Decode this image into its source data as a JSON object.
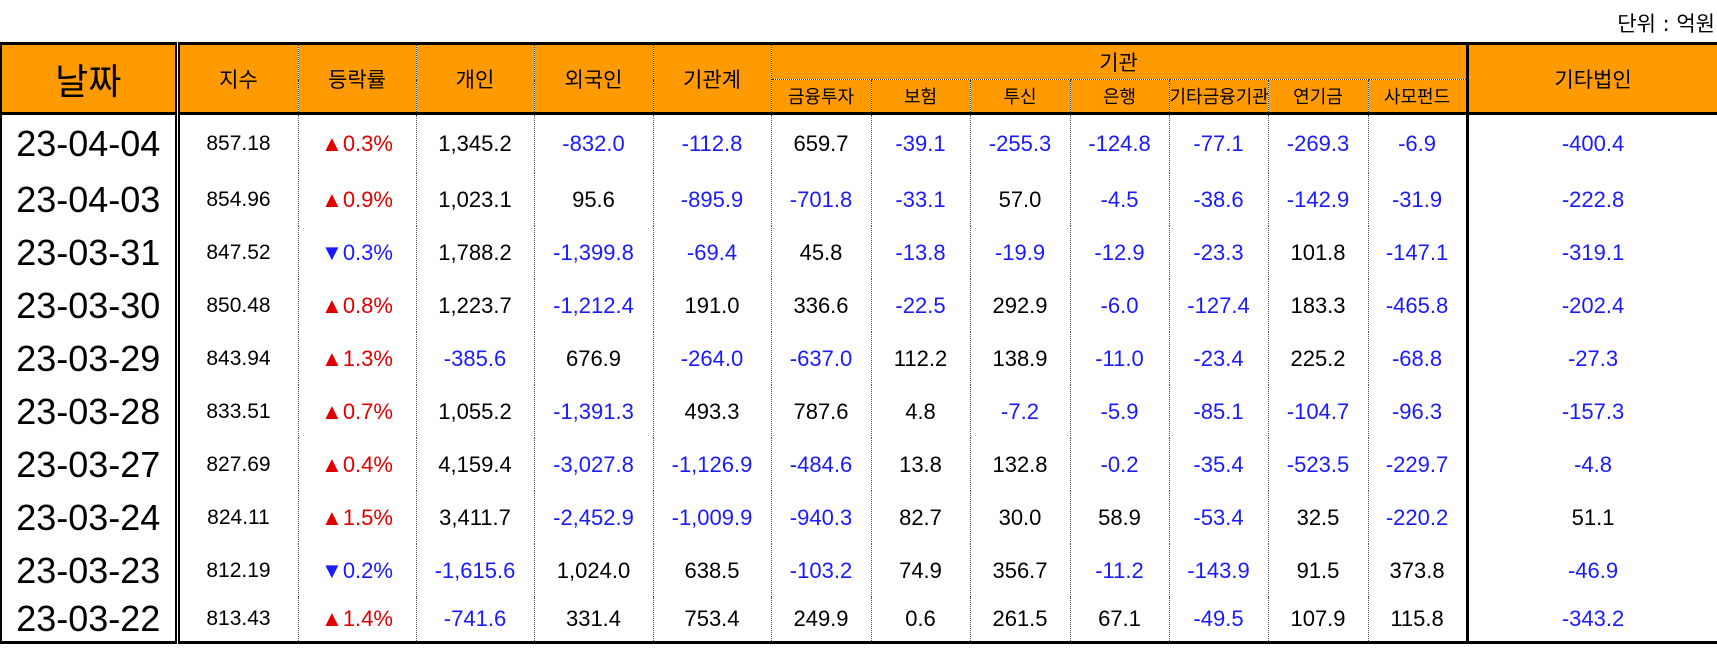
{
  "unit_label": "단위 : 억원",
  "headers": {
    "date": "날짜",
    "index": "지수",
    "change": "등락률",
    "individual": "개인",
    "foreign": "외국인",
    "inst_total": "기관계",
    "institution": "기관",
    "inst_sub": [
      "금융투자",
      "보험",
      "투신",
      "은행",
      "기타금융기관",
      "연기금",
      "사모펀드"
    ],
    "other_corp": "기타법인"
  },
  "colors": {
    "header_bg": "#ff9b00",
    "up": "#e00000",
    "down": "#1a1aff",
    "negative": "#1a1aff"
  },
  "rows": [
    {
      "date": "23-04-04",
      "index": "857.18",
      "dir": "up",
      "arrow": "▲",
      "pct": "0.3%",
      "vals": [
        "1,345.2",
        "-832.0",
        "-112.8",
        "659.7",
        "-39.1",
        "-255.3",
        "-124.8",
        "-77.1",
        "-269.3",
        "-6.9",
        "-400.4"
      ]
    },
    {
      "date": "23-04-03",
      "index": "854.96",
      "dir": "up",
      "arrow": "▲",
      "pct": "0.9%",
      "vals": [
        "1,023.1",
        "95.6",
        "-895.9",
        "-701.8",
        "-33.1",
        "57.0",
        "-4.5",
        "-38.6",
        "-142.9",
        "-31.9",
        "-222.8"
      ]
    },
    {
      "date": "23-03-31",
      "index": "847.52",
      "dir": "down",
      "arrow": "▼",
      "pct": "0.3%",
      "vals": [
        "1,788.2",
        "-1,399.8",
        "-69.4",
        "45.8",
        "-13.8",
        "-19.9",
        "-12.9",
        "-23.3",
        "101.8",
        "-147.1",
        "-319.1"
      ]
    },
    {
      "date": "23-03-30",
      "index": "850.48",
      "dir": "up",
      "arrow": "▲",
      "pct": "0.8%",
      "vals": [
        "1,223.7",
        "-1,212.4",
        "191.0",
        "336.6",
        "-22.5",
        "292.9",
        "-6.0",
        "-127.4",
        "183.3",
        "-465.8",
        "-202.4"
      ]
    },
    {
      "date": "23-03-29",
      "index": "843.94",
      "dir": "up",
      "arrow": "▲",
      "pct": "1.3%",
      "vals": [
        "-385.6",
        "676.9",
        "-264.0",
        "-637.0",
        "112.2",
        "138.9",
        "-11.0",
        "-23.4",
        "225.2",
        "-68.8",
        "-27.3"
      ]
    },
    {
      "date": "23-03-28",
      "index": "833.51",
      "dir": "up",
      "arrow": "▲",
      "pct": "0.7%",
      "vals": [
        "1,055.2",
        "-1,391.3",
        "493.3",
        "787.6",
        "4.8",
        "-7.2",
        "-5.9",
        "-85.1",
        "-104.7",
        "-96.3",
        "-157.3"
      ]
    },
    {
      "date": "23-03-27",
      "index": "827.69",
      "dir": "up",
      "arrow": "▲",
      "pct": "0.4%",
      "vals": [
        "4,159.4",
        "-3,027.8",
        "-1,126.9",
        "-484.6",
        "13.8",
        "132.8",
        "-0.2",
        "-35.4",
        "-523.5",
        "-229.7",
        "-4.8"
      ]
    },
    {
      "date": "23-03-24",
      "index": "824.11",
      "dir": "up",
      "arrow": "▲",
      "pct": "1.5%",
      "vals": [
        "3,411.7",
        "-2,452.9",
        "-1,009.9",
        "-940.3",
        "82.7",
        "30.0",
        "58.9",
        "-53.4",
        "32.5",
        "-220.2",
        "51.1"
      ]
    },
    {
      "date": "23-03-23",
      "index": "812.19",
      "dir": "down",
      "arrow": "▼",
      "pct": "0.2%",
      "vals": [
        "-1,615.6",
        "1,024.0",
        "638.5",
        "-103.2",
        "74.9",
        "356.7",
        "-11.2",
        "-143.9",
        "91.5",
        "373.8",
        "-46.9"
      ]
    },
    {
      "date": "23-03-22",
      "index": "813.43",
      "dir": "up",
      "arrow": "▲",
      "pct": "1.4%",
      "vals": [
        "-741.6",
        "331.4",
        "753.4",
        "249.9",
        "0.6",
        "261.5",
        "67.1",
        "-49.5",
        "107.9",
        "115.8",
        "-343.2"
      ]
    }
  ]
}
